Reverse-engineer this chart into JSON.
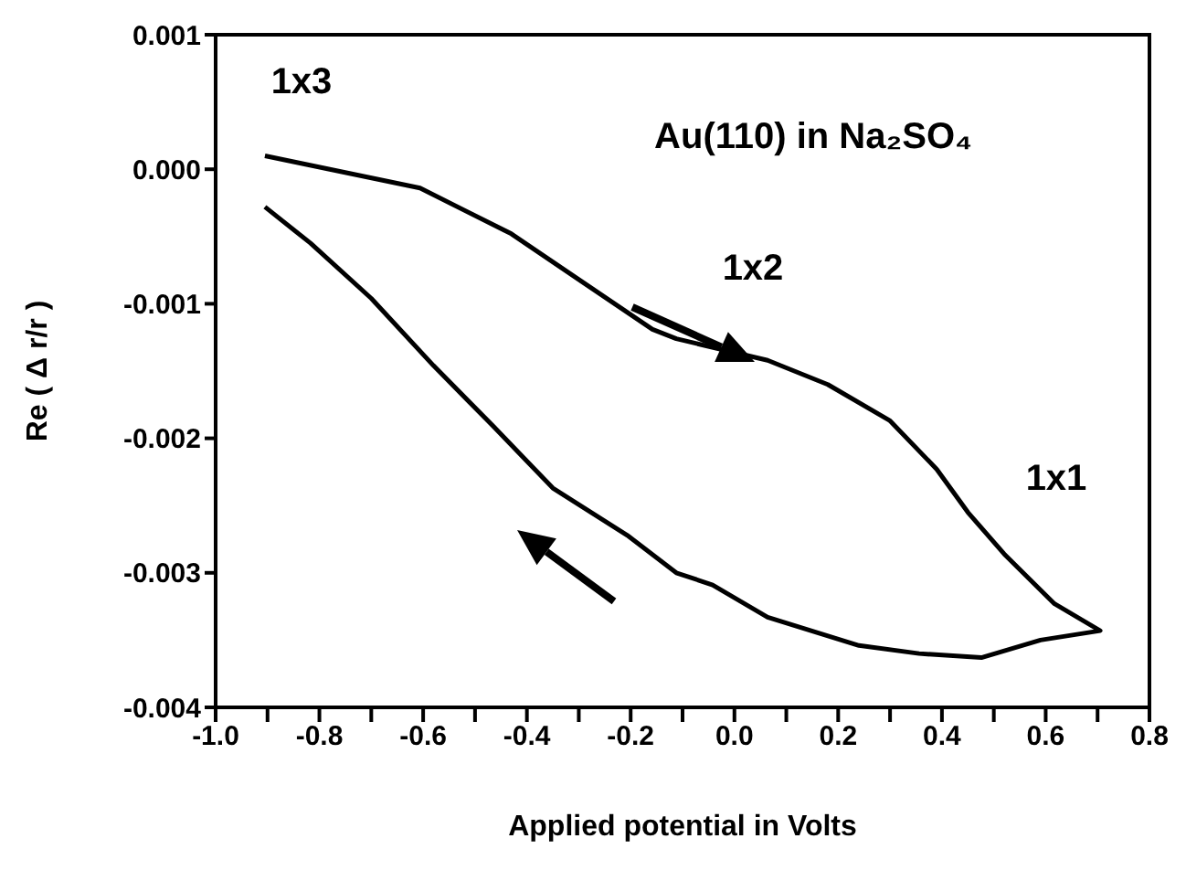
{
  "chart_data": {
    "type": "line",
    "title": "Au(110) in Na₂SO₄",
    "xlabel": "Applied potential in Volts",
    "ylabel": "Re ( Δ r/r )",
    "series": [
      {
        "color": "#000000",
        "x": [
          -0.905,
          -0.78,
          -0.606,
          -0.43,
          -0.3,
          -0.158,
          -0.112,
          0.064,
          0.18,
          0.3,
          0.39,
          0.45,
          0.52,
          0.617,
          0.705,
          0.59,
          0.476,
          0.356,
          0.24,
          0.064,
          -0.042,
          -0.112,
          -0.207,
          -0.35,
          -0.465,
          -0.58,
          -0.7,
          -0.817,
          -0.905
        ],
        "values": [
          0.0001,
          0.0,
          -0.00014,
          -0.00048,
          -0.00082,
          -0.00119,
          -0.00126,
          -0.00142,
          -0.0016,
          -0.00187,
          -0.00223,
          -0.00255,
          -0.00286,
          -0.00323,
          -0.00343,
          -0.0035,
          -0.00363,
          -0.0036,
          -0.00354,
          -0.00333,
          -0.00309,
          -0.003,
          -0.00272,
          -0.00237,
          -0.00191,
          -0.00146,
          -0.00096,
          -0.00055,
          -0.00028
        ]
      }
    ],
    "xlim": [
      -1.0,
      0.8
    ],
    "xticks": [
      {
        "value": -1.0,
        "label": "-1.0"
      },
      {
        "value": -0.9,
        "label": null
      },
      -0.8,
      {
        "value": -0.7,
        "label": null
      },
      -0.6,
      {
        "value": -0.5,
        "label": null
      },
      -0.4,
      {
        "value": -0.3,
        "label": null
      },
      -0.2,
      {
        "value": -0.1,
        "label": null
      },
      {
        "value": 0,
        "label": "0.0"
      },
      {
        "value": 0.1,
        "label": null
      },
      0.2,
      {
        "value": 0.3,
        "label": null
      },
      0.4,
      {
        "value": 0.5,
        "label": null
      },
      0.6,
      {
        "value": 0.7,
        "label": null
      },
      0.8
    ],
    "ylim": [
      -0.004,
      0.001
    ],
    "yticks": [
      -0.004,
      -0.003,
      -0.002,
      -0.001,
      {
        "value": 0,
        "label": "0.000"
      },
      0.001
    ],
    "annotations": [
      "1x3",
      "1x2",
      "1x1"
    ],
    "grid": false,
    "marker": "none",
    "line_style": "solid"
  }
}
